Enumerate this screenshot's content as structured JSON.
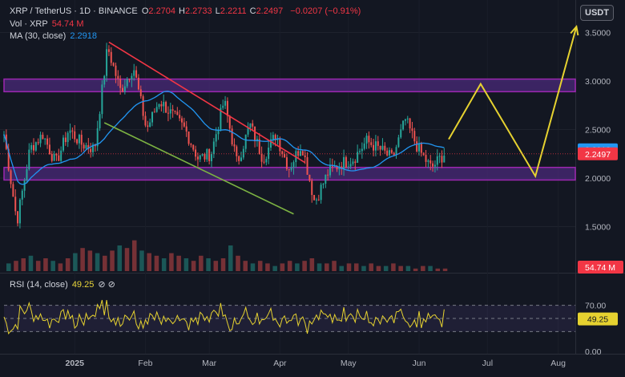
{
  "header": {
    "symbol": "XRP / TetherUS · 1D · BINANCE",
    "ohlc": [
      {
        "k": "O",
        "v": "2.2704"
      },
      {
        "k": "H",
        "v": "2.2733"
      },
      {
        "k": "L",
        "v": "2.2211"
      },
      {
        "k": "C",
        "v": "2.2497"
      }
    ],
    "change": "−0.0207 (−0.91%)",
    "vol_label": "Vol · XRP",
    "vol_value": "54.74 M",
    "ma_label": "MA (30, close)",
    "ma_value": "2.2918",
    "rsi_label": "RSI (14, close)",
    "rsi_value": "49.25",
    "rsi_icons": "⊘  ⊘"
  },
  "unit_button": "USDT",
  "colors": {
    "bg": "#131722",
    "up": "#26a69a",
    "down": "#ef5350",
    "ma": "#2196f3",
    "zone_fill": "#4a2a7a",
    "zone_border": "#9c27b0",
    "red_trend": "#f23645",
    "green_trend": "#7cb342",
    "forecast": "#e6d230",
    "rsi_line": "#e6d230",
    "rsi_band": "#7e57c2"
  },
  "chart_data": {
    "type": "candlestick",
    "price_axis": {
      "ticks": [
        "3.5000",
        "3.0000",
        "2.5000",
        "2.0000",
        "1.5000"
      ],
      "range": [
        1.3,
        3.72
      ]
    },
    "time_axis": {
      "ticks": [
        "2025",
        "Feb",
        "Mar",
        "Apr",
        "May",
        "Jun",
        "Jul",
        "Aug"
      ]
    },
    "price_badges": {
      "ma": "2.2918",
      "close": "2.2497",
      "volume": "54.74 M"
    },
    "zones": [
      {
        "low": 2.89,
        "high": 3.02
      },
      {
        "low": 1.98,
        "high": 2.11
      }
    ],
    "trendlines": [
      {
        "name": "resistance",
        "from": {
          "date": "2025-01-16",
          "price": 3.4
        },
        "to": {
          "date": "2025-04-12",
          "price": 2.16
        }
      },
      {
        "name": "support",
        "from": {
          "date": "2025-01-14",
          "price": 2.57
        },
        "to": {
          "date": "2025-04-07",
          "price": 1.63
        }
      }
    ],
    "forecast_path": [
      {
        "date": "2025-06-14",
        "price": 2.4
      },
      {
        "date": "2025-06-28",
        "price": 2.97
      },
      {
        "date": "2025-07-22",
        "price": 2.02
      },
      {
        "date": "2025-08-09",
        "price": 3.56
      }
    ],
    "price_path": [
      [
        2.45,
        1.55
      ],
      [
        2.3,
        2.45
      ],
      [
        2.15,
        2.5
      ],
      [
        2.35,
        2.3
      ],
      [
        3.35,
        2.9
      ],
      [
        3.15,
        2.5
      ],
      [
        2.8,
        2.65
      ],
      [
        2.5,
        2.2
      ],
      [
        2.25,
        2.8
      ],
      [
        2.15,
        2.55
      ],
      [
        2.2,
        2.45
      ],
      [
        2.1,
        2.35
      ],
      [
        1.75,
        2.05
      ],
      [
        2.15,
        2.2
      ],
      [
        2.38,
        2.3
      ],
      [
        2.2,
        2.6
      ],
      [
        2.3,
        2.1
      ],
      [
        2.25
      ]
    ],
    "path_note": "",
    "volume_profile": [
      3,
      4,
      5,
      6,
      4,
      5,
      4,
      3,
      5,
      7,
      9,
      8,
      7,
      6,
      8,
      10,
      9,
      12,
      8,
      7,
      6,
      5,
      7,
      6,
      5,
      4,
      6,
      5,
      4,
      5,
      10,
      6,
      4,
      3,
      4,
      3,
      2,
      3,
      4,
      3,
      4,
      5,
      3,
      3,
      4,
      2,
      3,
      3,
      2,
      3,
      2,
      2,
      3,
      2,
      2,
      1,
      2,
      2,
      1,
      1
    ],
    "rsi": {
      "levels": [
        "70.00",
        "50.00",
        "0.00"
      ],
      "overbought": 70,
      "oversold": 30,
      "last": 49.25
    }
  }
}
